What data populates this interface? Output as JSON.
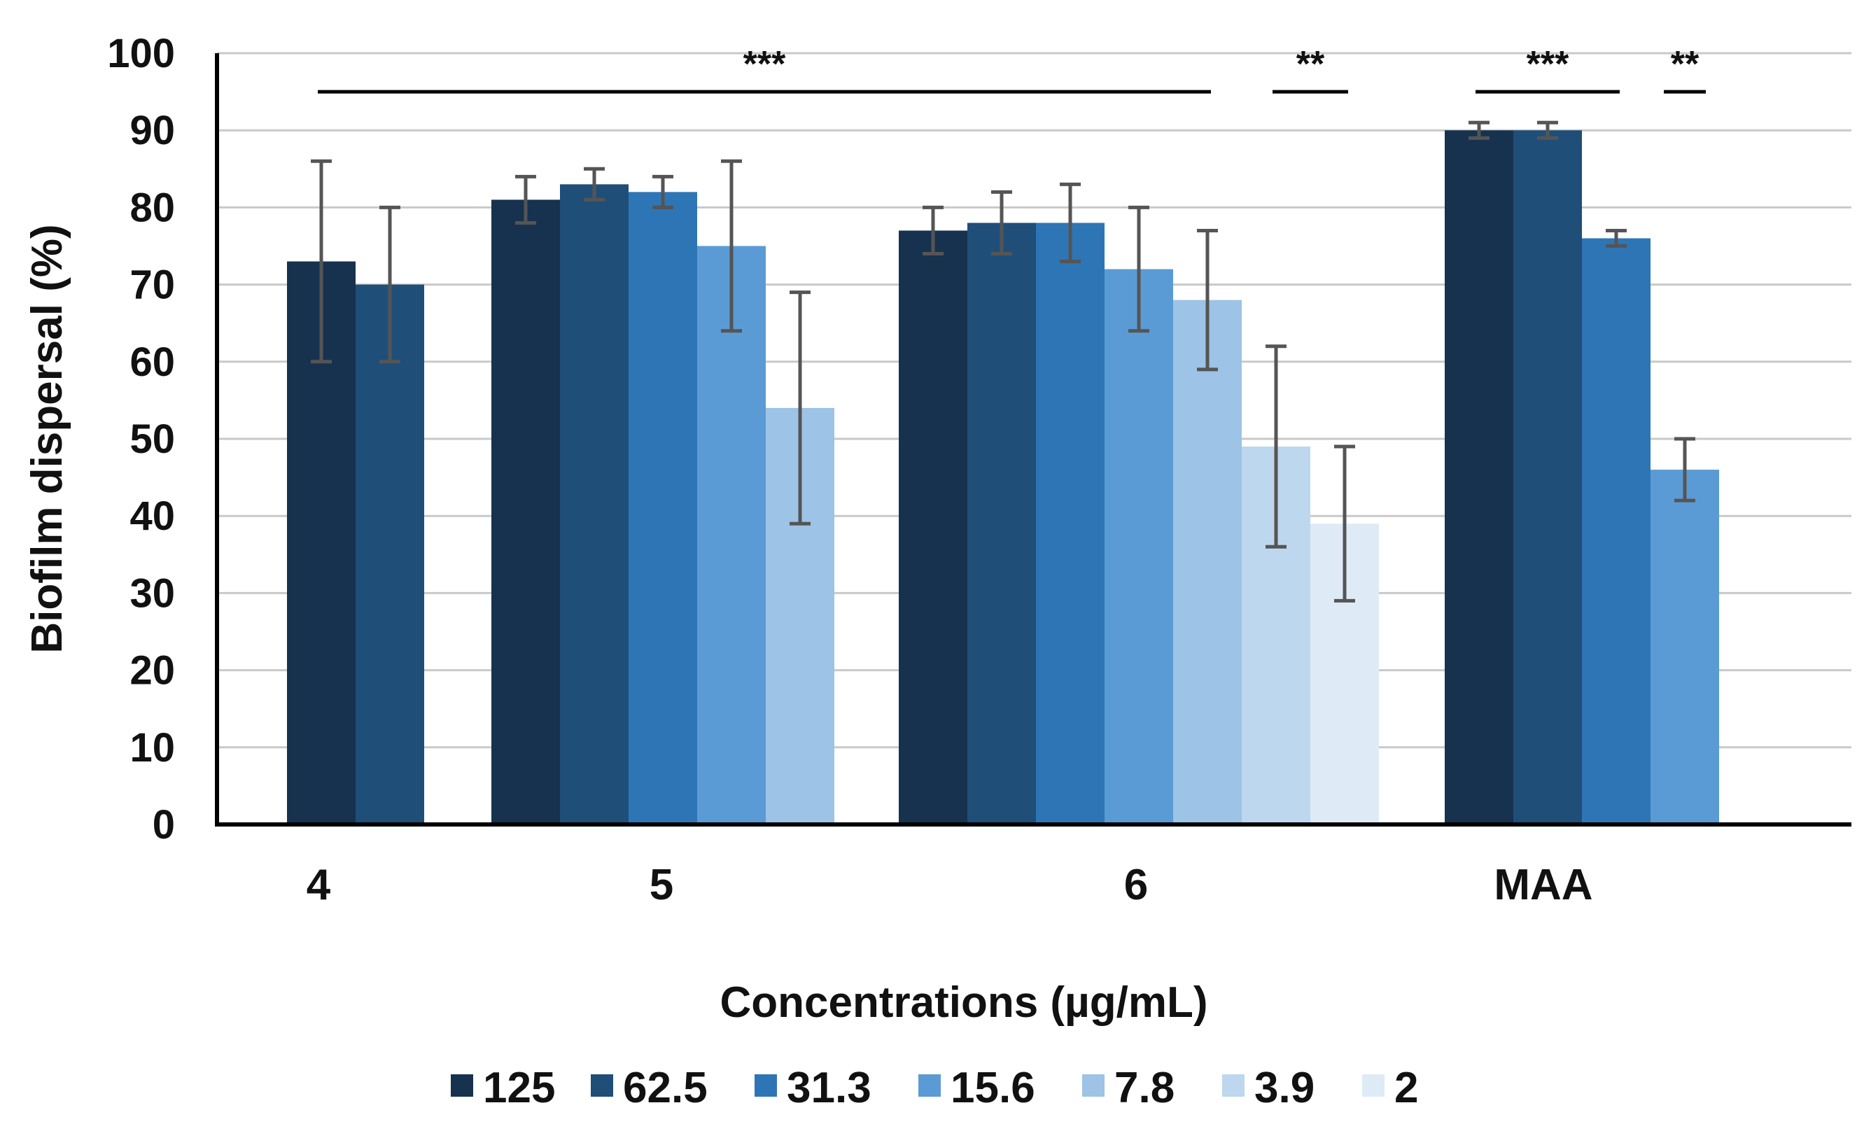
{
  "chart_data": {
    "type": "bar",
    "title": "",
    "xlabel": "Concentrations (µg/mL)",
    "ylabel": "Biofilm dispersal (%)",
    "ylim": [
      0,
      100
    ],
    "yticks": [
      0,
      10,
      20,
      30,
      40,
      50,
      60,
      70,
      80,
      90,
      100
    ],
    "grid": true,
    "legend_position": "bottom",
    "categories": [
      "4",
      "5",
      "6",
      "MAA"
    ],
    "series": [
      {
        "name": "125",
        "color": "#17324f",
        "values": [
          73,
          81,
          77,
          90
        ],
        "errors": [
          13,
          3,
          3,
          1
        ]
      },
      {
        "name": "62.5",
        "color": "#1f4e79",
        "values": [
          70,
          83,
          78,
          90
        ],
        "errors": [
          10,
          2,
          4,
          1
        ]
      },
      {
        "name": "31.3",
        "color": "#2e75b6",
        "values": [
          null,
          82,
          78,
          76
        ],
        "errors": [
          null,
          2,
          5,
          1
        ]
      },
      {
        "name": "15.6",
        "color": "#5b9bd5",
        "values": [
          null,
          75,
          72,
          46
        ],
        "errors": [
          null,
          11,
          8,
          4
        ]
      },
      {
        "name": "7.8",
        "color": "#9dc3e6",
        "values": [
          null,
          54,
          68,
          null
        ],
        "errors": [
          null,
          15,
          9,
          null
        ]
      },
      {
        "name": "3.9",
        "color": "#bdd7ee",
        "values": [
          null,
          null,
          49,
          null
        ],
        "errors": [
          null,
          null,
          13,
          null
        ]
      },
      {
        "name": "2",
        "color": "#deebf7",
        "values": [
          null,
          null,
          39,
          null
        ],
        "errors": [
          null,
          null,
          10,
          null
        ]
      }
    ],
    "annotations": [
      {
        "text": "***",
        "x_from": "4:125",
        "x_to": "6:7.8",
        "level": 95
      },
      {
        "text": "**",
        "x_from": "6:3.9",
        "x_to": "6:2",
        "level": 95
      },
      {
        "text": "***",
        "x_from": "MAA:125",
        "x_to": "MAA:31.3",
        "level": 95
      },
      {
        "text": "**",
        "x_from": "MAA:15.6",
        "x_to": "MAA:15.6",
        "level": 95
      }
    ]
  }
}
